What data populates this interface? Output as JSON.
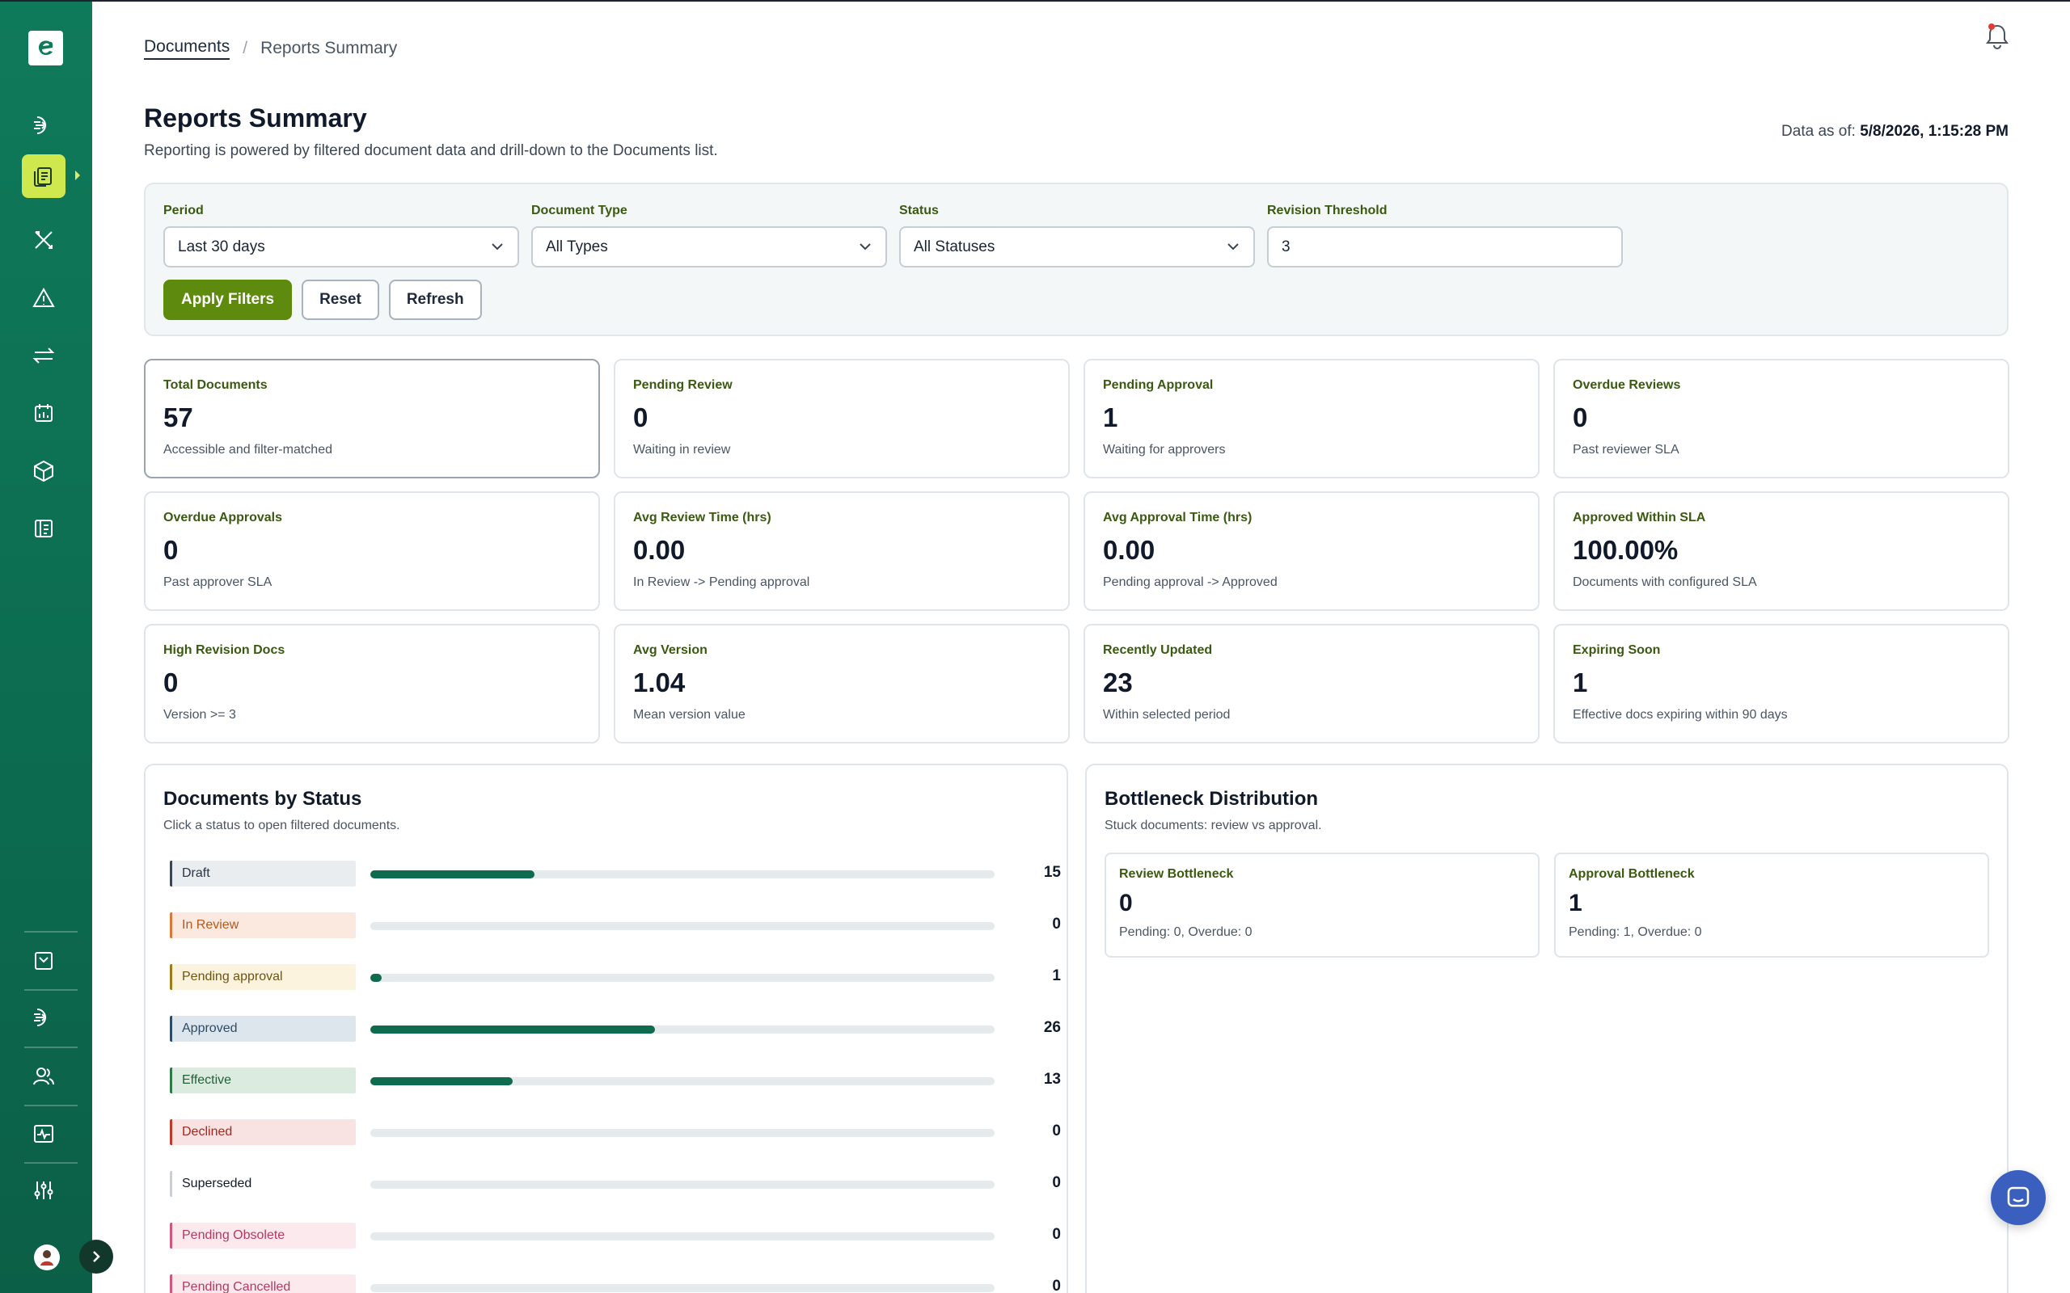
{
  "breadcrumb": {
    "root": "Documents",
    "separator": "/",
    "current": "Reports Summary"
  },
  "header": {
    "title": "Reports Summary",
    "subtitle": "Reporting is powered by filtered document data and drill-down to the Documents list.",
    "data_as_of_label": "Data as of:",
    "data_as_of_value": "5/8/2026, 1:15:28 PM"
  },
  "filters": {
    "period": {
      "label": "Period",
      "value": "Last 30 days"
    },
    "document_type": {
      "label": "Document Type",
      "value": "All Types"
    },
    "status": {
      "label": "Status",
      "value": "All Statuses"
    },
    "revision_threshold": {
      "label": "Revision Threshold",
      "value": "3"
    },
    "apply_label": "Apply Filters",
    "reset_label": "Reset",
    "refresh_label": "Refresh"
  },
  "kpis": [
    {
      "title": "Total Documents",
      "value": "57",
      "sub": "Accessible and filter-matched"
    },
    {
      "title": "Pending Review",
      "value": "0",
      "sub": "Waiting in review"
    },
    {
      "title": "Pending Approval",
      "value": "1",
      "sub": "Waiting for approvers"
    },
    {
      "title": "Overdue Reviews",
      "value": "0",
      "sub": "Past reviewer SLA"
    },
    {
      "title": "Overdue Approvals",
      "value": "0",
      "sub": "Past approver SLA"
    },
    {
      "title": "Avg Review Time (hrs)",
      "value": "0.00",
      "sub": "In Review -> Pending approval"
    },
    {
      "title": "Avg Approval Time (hrs)",
      "value": "0.00",
      "sub": "Pending approval -> Approved"
    },
    {
      "title": "Approved Within SLA",
      "value": "100.00%",
      "sub": "Documents with configured SLA"
    },
    {
      "title": "High Revision Docs",
      "value": "0",
      "sub": "Version >= 3"
    },
    {
      "title": "Avg Version",
      "value": "1.04",
      "sub": "Mean version value"
    },
    {
      "title": "Recently Updated",
      "value": "23",
      "sub": "Within selected period"
    },
    {
      "title": "Expiring Soon",
      "value": "1",
      "sub": "Effective docs expiring within 90 days"
    }
  ],
  "status_panel": {
    "title": "Documents by Status",
    "subtitle": "Click a status to open filtered documents.",
    "rows": [
      {
        "label": "Draft",
        "count": 15,
        "bg": "#e9edf0",
        "border": "#3a4452",
        "text": "#2a3442"
      },
      {
        "label": "In Review",
        "count": 0,
        "bg": "#fbe9e0",
        "border": "#d97a3a",
        "text": "#b25a1f"
      },
      {
        "label": "Pending approval",
        "count": 1,
        "bg": "#fbf3de",
        "border": "#a07a1a",
        "text": "#6e5410"
      },
      {
        "label": "Approved",
        "count": 26,
        "bg": "#dde6ec",
        "border": "#2f4c66",
        "text": "#2f4c66"
      },
      {
        "label": "Effective",
        "count": 13,
        "bg": "#dcebdf",
        "border": "#2e7a44",
        "text": "#245f35"
      },
      {
        "label": "Declined",
        "count": 0,
        "bg": "#f8e2e2",
        "border": "#c0392b",
        "text": "#a12a20"
      },
      {
        "label": "Superseded",
        "count": 0,
        "bg": "#ffffff",
        "border": "#c9cfd5",
        "text": "#101a2b"
      },
      {
        "label": "Pending Obsolete",
        "count": 0,
        "bg": "#fbe9ee",
        "border": "#d3557a",
        "text": "#b23a60"
      },
      {
        "label": "Pending Cancelled",
        "count": 0,
        "bg": "#fbe9ee",
        "border": "#d3557a",
        "text": "#b23a60"
      }
    ],
    "max": 57
  },
  "bottleneck_panel": {
    "title": "Bottleneck Distribution",
    "subtitle": "Stuck documents: review vs approval.",
    "cards": [
      {
        "title": "Review Bottleneck",
        "value": "0",
        "sub": "Pending: 0, Overdue: 0"
      },
      {
        "title": "Approval Bottleneck",
        "value": "1",
        "sub": "Pending: 1, Overdue: 0"
      }
    ]
  },
  "colors": {
    "sidebar": "#0c6b4f",
    "active_nav": "#cfe84e",
    "primary_button": "#5e8a0d",
    "bar_fill": "#0f6b4e",
    "chat": "#3b5fbf"
  }
}
